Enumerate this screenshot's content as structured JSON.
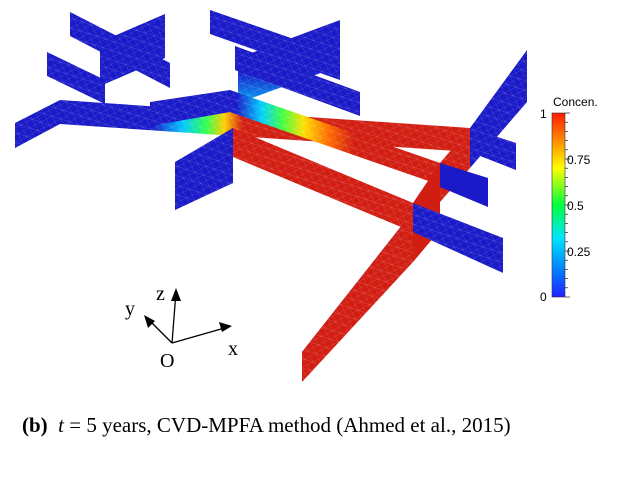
{
  "figure": {
    "colorbar": {
      "title": "Concen.",
      "ticks": [
        "1",
        "0.75",
        "0.5",
        "0.25",
        "0"
      ],
      "tick_values": [
        1,
        0.75,
        0.5,
        0.25,
        0
      ],
      "colors": [
        "#ff1a00",
        "#ff8c00",
        "#ffff00",
        "#00ff3c",
        "#00e5ff",
        "#0080ff",
        "#2020ff"
      ]
    },
    "axes": {
      "x": "x",
      "y": "y",
      "z": "z",
      "origin": "O"
    },
    "colors": {
      "low": "#1a1ac8",
      "high": "#d21e12"
    }
  },
  "caption": {
    "label": "(b)",
    "variable": "t",
    "text": " = 5 years, CVD-MPFA method (Ahmed et al., 2015)"
  }
}
